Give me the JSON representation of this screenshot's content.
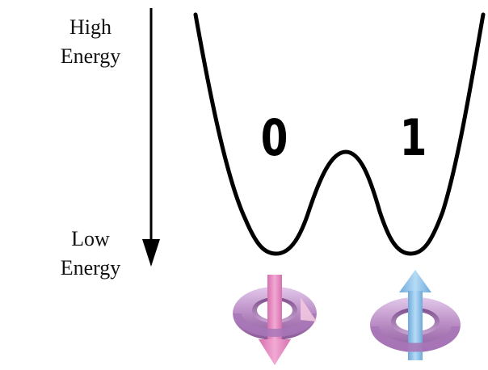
{
  "axis": {
    "high_line1": "High",
    "high_line2": "Energy",
    "low_line1": "Low",
    "low_line2": "Energy"
  },
  "states": {
    "left": "0",
    "right": "1"
  },
  "colors": {
    "curve": "#000000",
    "spin_down_arrow": "#e58fc1",
    "spin_up_arrow": "#8ec3ea",
    "ring": "#b98bc4"
  },
  "icons": {
    "left_spin": "spin-down-ring-icon",
    "right_spin": "spin-up-ring-icon"
  }
}
